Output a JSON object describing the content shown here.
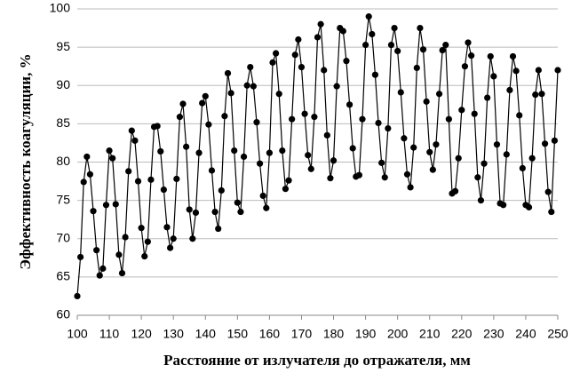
{
  "chart_data": {
    "type": "line",
    "xlabel": "Расстояние от излучателя до отражателя, мм",
    "ylabel": "Эффективность коагуляции, %",
    "x": [
      100,
      101,
      102,
      103,
      104,
      105,
      106,
      107,
      108,
      109,
      110,
      111,
      112,
      113,
      114,
      115,
      116,
      117,
      118,
      119,
      120,
      121,
      122,
      123,
      124,
      125,
      126,
      127,
      128,
      129,
      130,
      131,
      132,
      133,
      134,
      135,
      136,
      137,
      138,
      139,
      140,
      141,
      142,
      143,
      144,
      145,
      146,
      147,
      148,
      149,
      150,
      151,
      152,
      153,
      154,
      155,
      156,
      157,
      158,
      159,
      160,
      161,
      162,
      163,
      164,
      165,
      166,
      167,
      168,
      169,
      170,
      171,
      172,
      173,
      174,
      175,
      176,
      177,
      178,
      179,
      180,
      181,
      182,
      183,
      184,
      185,
      186,
      187,
      188,
      189,
      190,
      191,
      192,
      193,
      194,
      195,
      196,
      197,
      198,
      199,
      200,
      201,
      202,
      203,
      204,
      205,
      206,
      207,
      208,
      209,
      210,
      211,
      212,
      213,
      214,
      215,
      216,
      217,
      218,
      219,
      220,
      221,
      222,
      223,
      224,
      225,
      226,
      227,
      228,
      229,
      230,
      231,
      232,
      233,
      234,
      235,
      236,
      237,
      238,
      239,
      240,
      241,
      242,
      243,
      244,
      245,
      246,
      247,
      248,
      249,
      250
    ],
    "series": [
      {
        "color": "#000000",
        "values": [
          62.5,
          67.6,
          77.4,
          80.7,
          78.4,
          73.6,
          68.5,
          65.2,
          66.1,
          74.4,
          81.5,
          80.5,
          74.5,
          67.9,
          65.5,
          70.2,
          78.8,
          84.1,
          82.8,
          77.5,
          71.4,
          67.7,
          69.6,
          77.7,
          84.6,
          84.7,
          81.4,
          76.4,
          71.5,
          68.8,
          70.0,
          77.8,
          85.9,
          87.6,
          82.0,
          73.8,
          70,
          73.4,
          81.2,
          87.7,
          88.6,
          84.9,
          78.9,
          73.5,
          71.3,
          76.3,
          86.0,
          91.6,
          89.0,
          81.5,
          74.7,
          73.5,
          80.7,
          90.0,
          92.4,
          89.9,
          85.2,
          79.8,
          75.6,
          74,
          81.2,
          93.0,
          94.2,
          88.9,
          81.5,
          76.5,
          77.6,
          85.6,
          94.0,
          96.0,
          92.4,
          86.3,
          80.9,
          79.1,
          85.9,
          96.3,
          98.0,
          92.0,
          83.5,
          77.9,
          80.2,
          89.9,
          97.5,
          97.1,
          93.2,
          87.5,
          81.8,
          78.1,
          78.3,
          85.6,
          95.3,
          99,
          96.7,
          91.4,
          85.1,
          79.9,
          78,
          84.4,
          95.3,
          97.5,
          94.5,
          89.1,
          83.1,
          78.4,
          76.7,
          81.9,
          92.3,
          97.5,
          94.7,
          87.9,
          81.3,
          79.0,
          82.3,
          88.9,
          94.6,
          95.3,
          85.6,
          75.9,
          76.2,
          80.5,
          86.8,
          92.5,
          95.6,
          93.9,
          86.3,
          78.0,
          75.0,
          79.8,
          88.4,
          93.8,
          91.2,
          82.3,
          74.6,
          74.4,
          81.0,
          89.4,
          93.8,
          91.9,
          86.1,
          79.2,
          74.4,
          74.1,
          80.5,
          88.8,
          92.0,
          88.9,
          82.4,
          76.1,
          73.5,
          82.8,
          92
        ]
      }
    ],
    "xlim": [
      100,
      250
    ],
    "xticks": [
      100,
      110,
      120,
      130,
      140,
      150,
      160,
      170,
      180,
      190,
      200,
      210,
      220,
      230,
      240,
      250
    ],
    "ylim": [
      60,
      100
    ],
    "yticks": [
      60,
      65,
      70,
      75,
      80,
      85,
      90,
      95,
      100
    ],
    "grid": true
  }
}
